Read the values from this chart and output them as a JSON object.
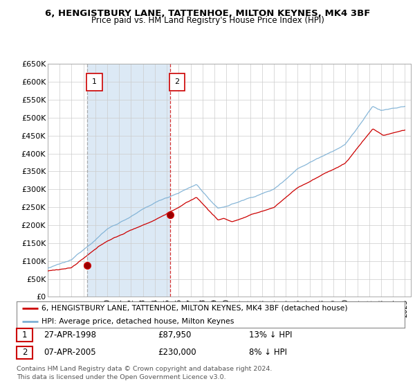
{
  "title1": "6, HENGISTBURY LANE, TATTENHOE, MILTON KEYNES, MK4 3BF",
  "title2": "Price paid vs. HM Land Registry's House Price Index (HPI)",
  "legend_label1": "6, HENGISTBURY LANE, TATTENHOE, MILTON KEYNES, MK4 3BF (detached house)",
  "legend_label2": "HPI: Average price, detached house, Milton Keynes",
  "annotation1_date": "27-APR-1998",
  "annotation1_price": "£87,950",
  "annotation1_hpi": "13% ↓ HPI",
  "annotation2_date": "07-APR-2005",
  "annotation2_price": "£230,000",
  "annotation2_hpi": "8% ↓ HPI",
  "footer": "Contains HM Land Registry data © Crown copyright and database right 2024.\nThis data is licensed under the Open Government Licence v3.0.",
  "line1_color": "#cc0000",
  "line2_color": "#7bafd4",
  "span_color": "#dce9f5",
  "plot_bg": "#ffffff",
  "ylim": [
    0,
    650000
  ],
  "yticks": [
    0,
    50000,
    100000,
    150000,
    200000,
    250000,
    300000,
    350000,
    400000,
    450000,
    500000,
    550000,
    600000,
    650000
  ],
  "sale1_x": 1998.32,
  "sale1_y": 87950,
  "sale2_x": 2005.27,
  "sale2_y": 230000,
  "xmin": 1995,
  "xmax": 2025.5
}
